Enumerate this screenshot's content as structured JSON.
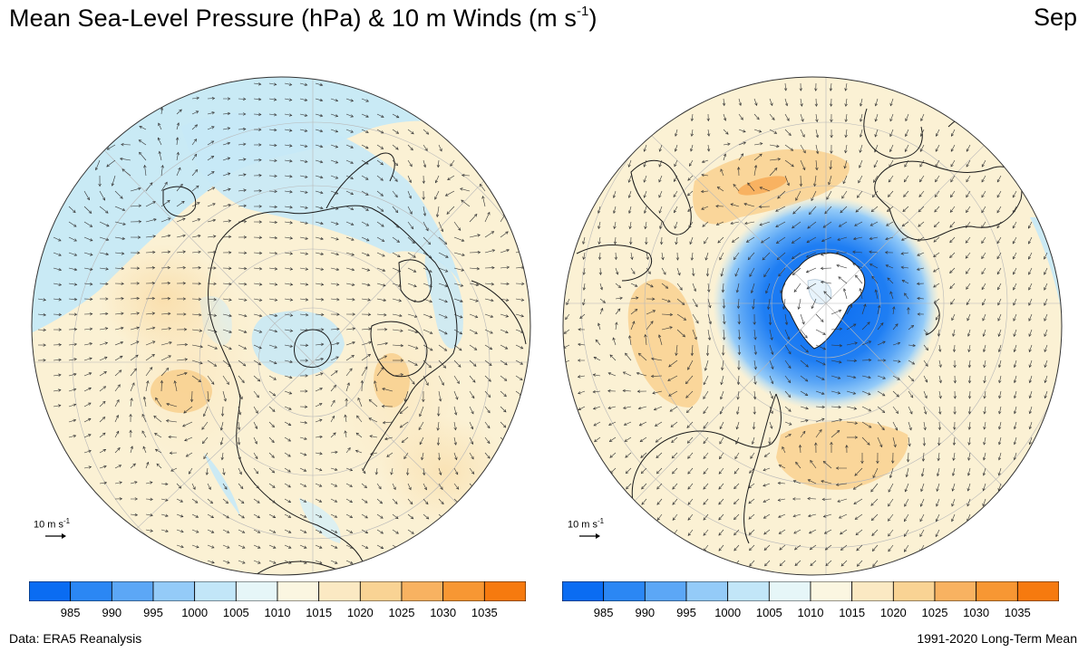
{
  "header": {
    "title_main": "Mean Sea-Level Pressure (hPa) & 10 m Winds (m s",
    "title_sup": "-1",
    "title_end": ")",
    "month": "Sep"
  },
  "maps": [
    {
      "id": "northern-hemisphere",
      "projection": "north-polar-stereographic"
    },
    {
      "id": "southern-hemisphere",
      "projection": "south-polar-stereographic"
    }
  ],
  "wind_reference": {
    "label": "10 m s",
    "sup": "-1"
  },
  "colorbar": {
    "levels": [
      "985",
      "990",
      "995",
      "1000",
      "1005",
      "1010",
      "1015",
      "1020",
      "1025",
      "1030",
      "1035"
    ],
    "colors": [
      "#0a6cf2",
      "#2b87f4",
      "#5ca7f6",
      "#94cbf8",
      "#c2e6f8",
      "#e6f6f8",
      "#fbf6e1",
      "#fbe9c3",
      "#f9d394",
      "#f8b261",
      "#f79733",
      "#f67a0f"
    ]
  },
  "footer": {
    "source": "Data: ERA5 Reanalysis",
    "period": "1991-2020 Long-Term Mean"
  }
}
